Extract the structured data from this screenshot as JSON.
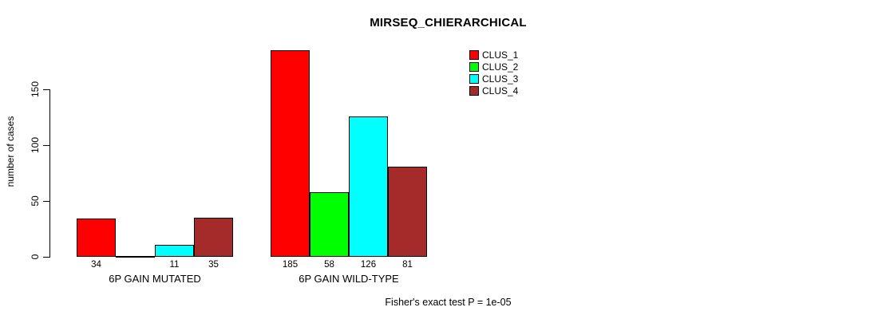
{
  "title": "MIRSEQ_CHIERARCHICAL",
  "footer": "Fisher's exact test P = 1e-05",
  "colors": {
    "background": "#ffffff",
    "axis": "#000000",
    "bar_border": "#000000",
    "clus_1": "#ff0000",
    "clus_2": "#00ff00",
    "clus_3": "#00ffff",
    "clus_4": "#a52a2a"
  },
  "chart_data": {
    "type": "bar",
    "title": "MIRSEQ_CHIERARCHICAL",
    "xlabel": "",
    "ylabel": "number of cases",
    "categories": [
      "6P GAIN MUTATED",
      "6P GAIN WILD-TYPE"
    ],
    "series": [
      {
        "name": "CLUS_1",
        "color": "#ff0000",
        "values": [
          34,
          185
        ],
        "value_labels": [
          "34",
          "185"
        ]
      },
      {
        "name": "CLUS_2",
        "color": "#00ff00",
        "values": [
          0,
          58
        ],
        "value_labels": [
          "",
          "58"
        ]
      },
      {
        "name": "CLUS_3",
        "color": "#00ffff",
        "values": [
          11,
          126
        ],
        "value_labels": [
          "11",
          "126"
        ]
      },
      {
        "name": "CLUS_4",
        "color": "#a52a2a",
        "values": [
          35,
          81
        ],
        "value_labels": [
          "35",
          "81"
        ]
      }
    ],
    "yticks": [
      0,
      50,
      100,
      150
    ],
    "ylim": [
      0,
      188
    ],
    "grid": false,
    "legend_position": "top-right",
    "legend_entries": [
      "CLUS_1",
      "CLUS_2",
      "CLUS_3",
      "CLUS_4"
    ],
    "annotation": "Fisher's exact test P = 1e-05"
  }
}
